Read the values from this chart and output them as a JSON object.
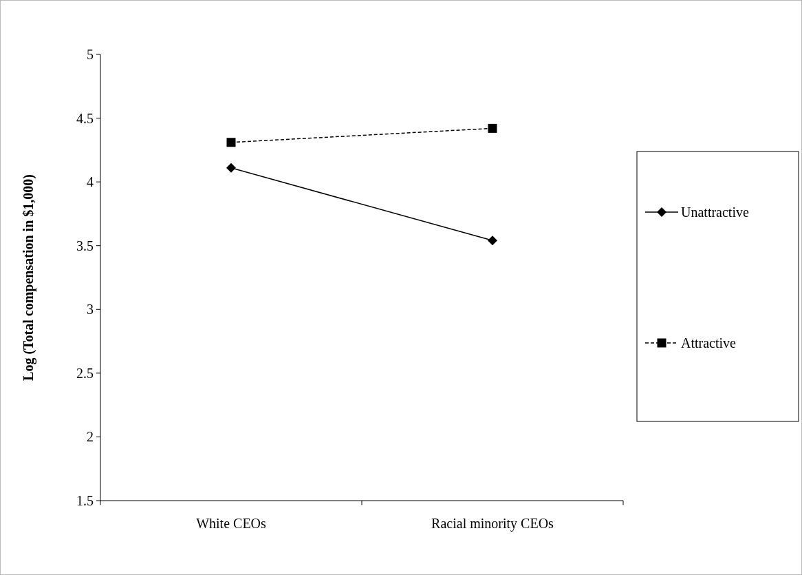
{
  "chart_data": {
    "type": "line",
    "ylabel": "Log (Total compensation in $1,000)",
    "categories": [
      "White CEOs",
      "Racial minority CEOs"
    ],
    "series": [
      {
        "name": "Unattractive",
        "color": "#000000",
        "values": [
          4.11,
          3.54
        ],
        "marker": "diamond",
        "line_style": "solid"
      },
      {
        "name": "Attractive",
        "color": "#000000",
        "values": [
          4.31,
          4.42
        ],
        "marker": "square",
        "line_style": "dashed"
      }
    ],
    "ylim": [
      1.5,
      5
    ],
    "yticks": [
      1.5,
      2,
      2.5,
      3,
      3.5,
      4,
      4.5,
      5
    ],
    "grid": false,
    "legend": "right"
  }
}
